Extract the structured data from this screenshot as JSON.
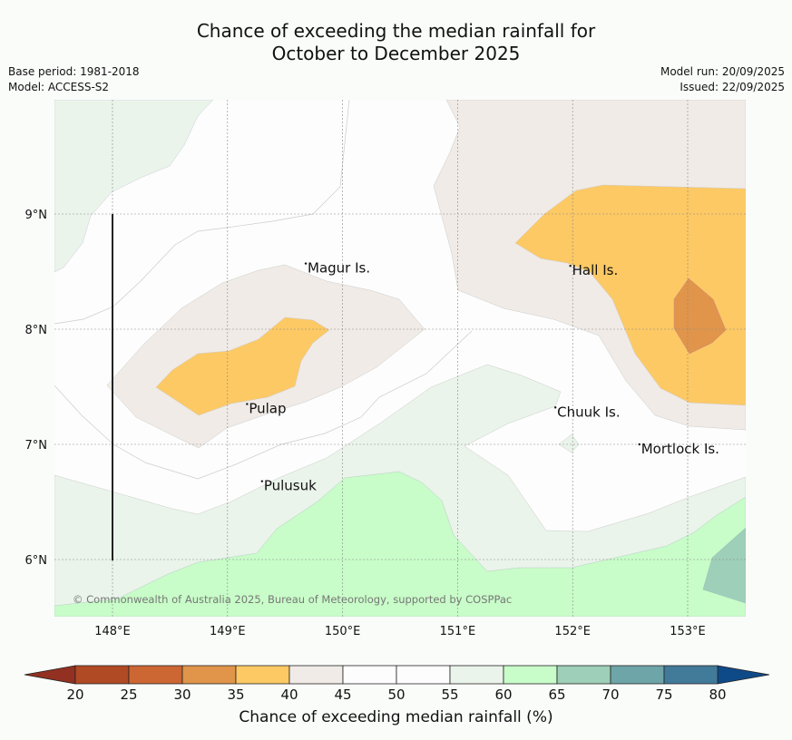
{
  "title": {
    "line1": "Chance of exceeding the median rainfall for",
    "line2": "October to December 2025"
  },
  "meta": {
    "base_period": "Base period: 1981-2018",
    "model": "Model: ACCESS-S2",
    "model_run": "Model run: 20/09/2025",
    "issued": "Issued: 22/09/2025"
  },
  "map": {
    "extent": {
      "lon": [
        147.5,
        153.5
      ],
      "lat": [
        5.5,
        10.0
      ]
    },
    "x_ticks": [
      {
        "value": 148,
        "label": "148°E"
      },
      {
        "value": 149,
        "label": "149°E"
      },
      {
        "value": 150,
        "label": "150°E"
      },
      {
        "value": 151,
        "label": "151°E"
      },
      {
        "value": 152,
        "label": "152°E"
      },
      {
        "value": 153,
        "label": "153°E"
      }
    ],
    "y_ticks": [
      {
        "value": 9,
        "label": "9°N"
      },
      {
        "value": 8,
        "label": "8°N"
      },
      {
        "value": 7,
        "label": "7°N"
      },
      {
        "value": 6,
        "label": "6°N"
      }
    ],
    "places": [
      {
        "name": "Magur Is.",
        "lon": 149.68,
        "lat": 8.57
      },
      {
        "name": "Hall Is.",
        "lon": 151.98,
        "lat": 8.55
      },
      {
        "name": "Pulap",
        "lon": 149.17,
        "lat": 7.35
      },
      {
        "name": "Chuuk Is.",
        "lon": 151.85,
        "lat": 7.32
      },
      {
        "name": "Mortlock Is.",
        "lon": 152.58,
        "lat": 7.0
      },
      {
        "name": "Pulusuk",
        "lon": 149.3,
        "lat": 6.68
      }
    ],
    "copyright": "© Commonwealth of Australia 2025, Bureau of Meteorology, supported by COSPPac"
  },
  "colorbar": {
    "label": "Chance of exceeding median rainfall (%)",
    "ticks": [
      "20",
      "25",
      "30",
      "35",
      "40",
      "45",
      "50",
      "55",
      "60",
      "65",
      "70",
      "75",
      "80"
    ],
    "colors": [
      "#b04a24",
      "#cc6633",
      "#e0954a",
      "#fdc964",
      "#f0ebe6",
      "#fcfdfc",
      "#fcfdfc",
      "#eaf4ea",
      "#c8fcc8",
      "#9ecfb8",
      "#6ea5a8",
      "#427a99"
    ],
    "under_color": "#923021",
    "over_color": "#0f4a88"
  }
}
